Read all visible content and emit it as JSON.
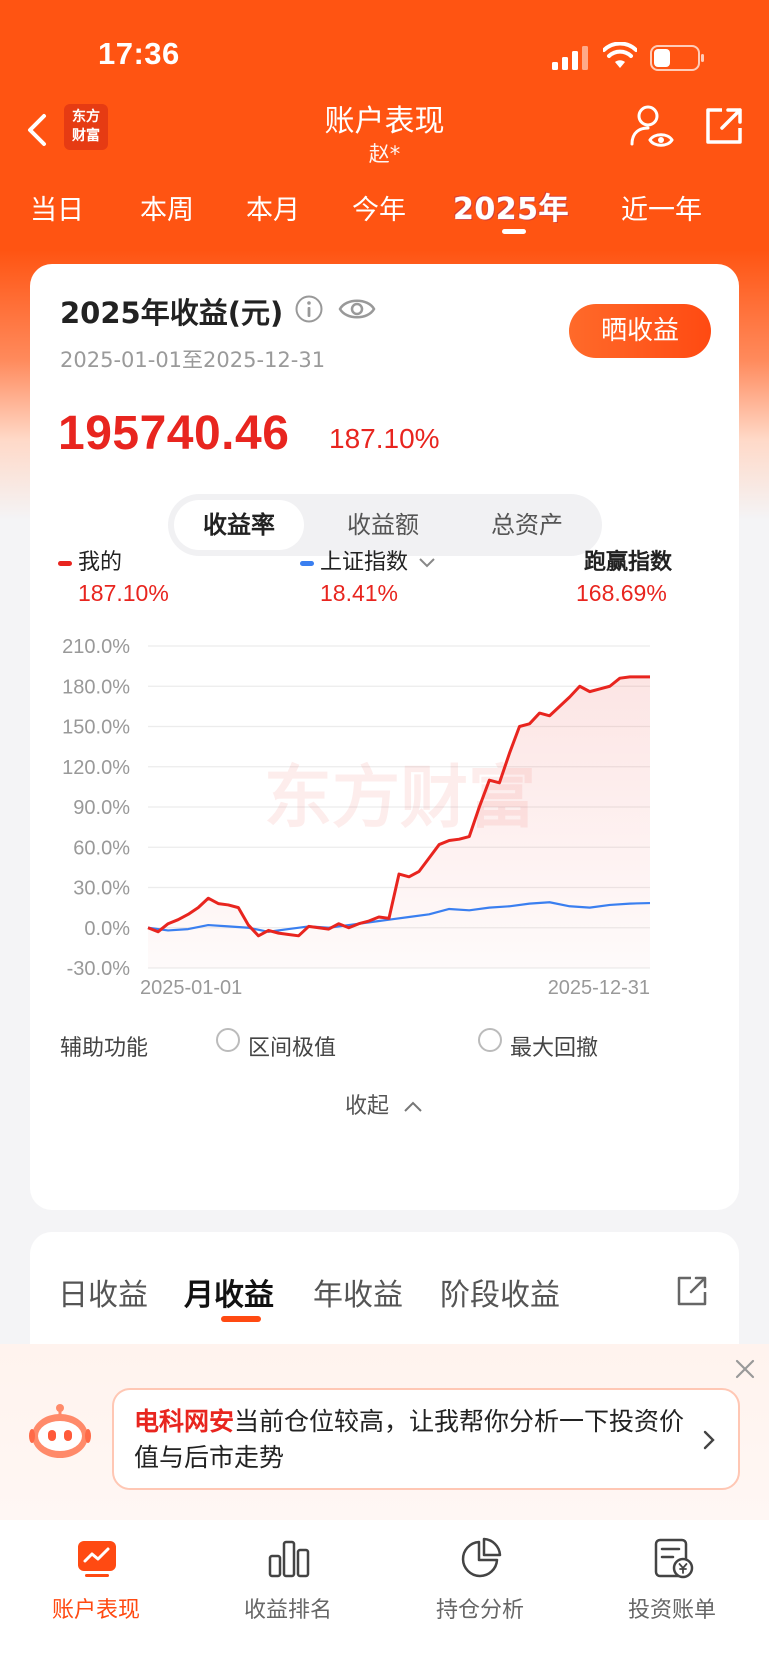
{
  "status": {
    "time": "17:36"
  },
  "nav": {
    "logo_text_line1": "东方",
    "logo_text_line2": "财富",
    "title": "账户表现",
    "subtitle": "赵*"
  },
  "period_tabs": [
    "当日",
    "本周",
    "本月",
    "今年",
    "2025年",
    "近一年"
  ],
  "active_period": "2025年",
  "summary": {
    "title": "2025年收益(元)",
    "range": "2025-01-01至2025-12-31",
    "share_button": "晒收益",
    "amount": "195740.46",
    "percent": "187.10%"
  },
  "segments": [
    "收益率",
    "收益额",
    "总资产"
  ],
  "legend": {
    "mine_label": "我的",
    "mine_value": "187.10%",
    "index_label": "上证指数",
    "index_value": "18.41%",
    "beat_label": "跑赢指数",
    "beat_value": "168.69%"
  },
  "chart_data": {
    "type": "line",
    "y_ticks": [
      "210.0%",
      "180.0%",
      "150.0%",
      "120.0%",
      "90.0%",
      "60.0%",
      "30.0%",
      "0.0%",
      "-30.0%"
    ],
    "ylim": [
      -30,
      210
    ],
    "x_start_label": "2025-01-01",
    "x_end_label": "2025-12-31",
    "watermark": "东方财富",
    "colors": {
      "mine": "#e8251f",
      "index": "#3a7ff0"
    },
    "series": [
      {
        "name": "我的",
        "x": [
          0,
          2,
          4,
          6,
          8,
          10,
          12,
          14,
          16,
          18,
          20,
          22,
          24,
          26,
          28,
          30,
          32,
          34,
          36,
          38,
          40,
          42,
          44,
          46,
          48,
          50,
          52,
          54,
          56,
          58,
          60,
          62,
          64,
          66,
          68,
          70,
          72,
          74,
          76,
          78,
          80,
          82,
          84,
          86,
          88,
          90,
          92,
          94,
          96,
          98,
          100
        ],
        "values": [
          0,
          -3,
          3,
          6,
          10,
          15,
          22,
          18,
          17,
          15,
          2,
          -6,
          -2,
          -4,
          -5,
          -6,
          1,
          0,
          -1,
          3,
          0,
          3,
          5,
          8,
          7,
          40,
          38,
          42,
          52,
          62,
          65,
          66,
          68,
          90,
          110,
          108,
          130,
          150,
          152,
          160,
          158,
          165,
          172,
          180,
          176,
          178,
          180,
          186,
          187,
          187,
          187
        ]
      },
      {
        "name": "上证指数",
        "x": [
          0,
          4,
          8,
          12,
          16,
          20,
          24,
          28,
          32,
          36,
          40,
          44,
          48,
          52,
          56,
          60,
          64,
          68,
          72,
          76,
          80,
          84,
          88,
          92,
          96,
          100
        ],
        "values": [
          0,
          -2,
          -1,
          2,
          1,
          0,
          -3,
          -1,
          1,
          0,
          2,
          4,
          6,
          8,
          10,
          14,
          13,
          15,
          16,
          18,
          19,
          16,
          15,
          17,
          18,
          18.41
        ]
      }
    ]
  },
  "aux": {
    "label": "辅助功能",
    "opt1": "区间极值",
    "opt2": "最大回撤",
    "collapse": "收起"
  },
  "profit_tabs": [
    "日收益",
    "月收益",
    "年收益",
    "阶段收益"
  ],
  "active_profit_tab": "月收益",
  "ai_banner": {
    "highlight": "电科网安",
    "text": "当前仓位较高，让我帮你分析一下投资价值与后市走势"
  },
  "bottom_nav": [
    "账户表现",
    "收益排名",
    "持仓分析",
    "投资账单"
  ]
}
